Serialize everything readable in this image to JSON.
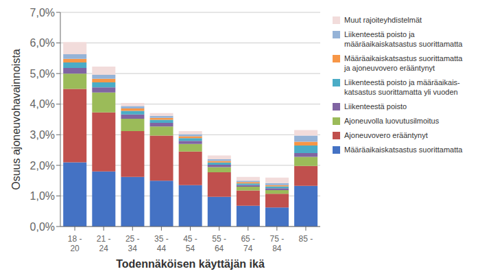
{
  "chart_data": {
    "type": "bar",
    "stacked": true,
    "categories": [
      "18 -\n20",
      "21 -\n24",
      "25 -\n34",
      "35 -\n44",
      "45 -\n54",
      "55 -\n64",
      "65 -\n74",
      "75 -\n84",
      "85 -"
    ],
    "series": [
      {
        "name": "Määräaikaiskatsastus suorittamatta",
        "color": "#4472C4",
        "values": [
          2.1,
          1.8,
          1.62,
          1.5,
          1.35,
          0.97,
          0.68,
          0.62,
          1.33
        ]
      },
      {
        "name": "Ajoneuvovero erääntynyt",
        "color": "#C0504D",
        "values": [
          2.4,
          1.93,
          1.5,
          1.47,
          1.1,
          0.8,
          0.5,
          0.45,
          0.65
        ]
      },
      {
        "name": "Ajoneuvolla luovutusilmoitus",
        "color": "#9BBB59",
        "values": [
          0.5,
          0.65,
          0.4,
          0.3,
          0.25,
          0.17,
          0.12,
          0.12,
          0.3
        ]
      },
      {
        "name": "Liikenteestä poisto",
        "color": "#8064A2",
        "values": [
          0.18,
          0.17,
          0.14,
          0.12,
          0.1,
          0.08,
          0.06,
          0.06,
          0.12
        ]
      },
      {
        "name": "Liikenteestä poisto ja määräaikais-\nkatsastus suorittamatta yli vuoden",
        "color": "#4BACC6",
        "values": [
          0.18,
          0.16,
          0.12,
          0.1,
          0.09,
          0.07,
          0.05,
          0.06,
          0.25
        ]
      },
      {
        "name": "Määräaikaiskatsastus suorittamatta\nja ajoneuvovero erääntynyt",
        "color": "#F79646",
        "values": [
          0.12,
          0.12,
          0.08,
          0.06,
          0.06,
          0.05,
          0.04,
          0.04,
          0.12
        ]
      },
      {
        "name": "Liikenteestä poisto ja\nmääräaikaiskatsastus suorittamatta",
        "color": "#95B3D7",
        "values": [
          0.15,
          0.13,
          0.08,
          0.07,
          0.07,
          0.06,
          0.05,
          0.07,
          0.2
        ]
      },
      {
        "name": "Muut rajoiteyhdistelmät",
        "color": "#F2DCDB",
        "values": [
          0.4,
          0.27,
          0.1,
          0.09,
          0.1,
          0.12,
          0.12,
          0.18,
          0.18
        ]
      }
    ],
    "xlabel": "Todennäköisen käyttäjän ikä",
    "ylabel": "Osuus ajoneuvohavainnoista",
    "ylim": [
      0.0,
      7.0
    ],
    "yticks": [
      {
        "value": 0.0,
        "label": "0,0%"
      },
      {
        "value": 1.0,
        "label": "1,0%"
      },
      {
        "value": 2.0,
        "label": "2,0%"
      },
      {
        "value": 3.0,
        "label": "3,0%"
      },
      {
        "value": 4.0,
        "label": "4,0%"
      },
      {
        "value": 5.0,
        "label": "5,0%"
      },
      {
        "value": 6.0,
        "label": "6,0%"
      },
      {
        "value": 7.0,
        "label": "7,0%"
      }
    ],
    "grid": true,
    "legend": "right"
  }
}
